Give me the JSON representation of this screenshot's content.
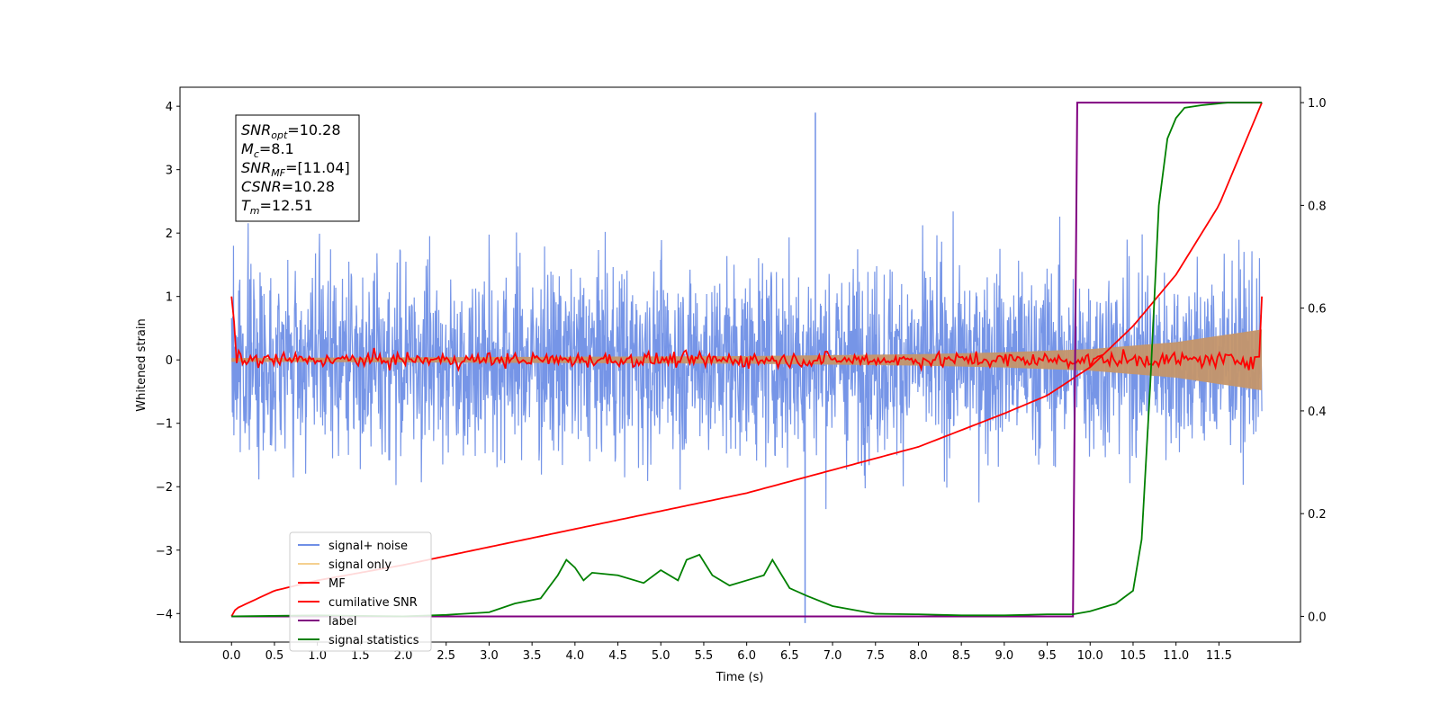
{
  "chart_data": {
    "type": "line",
    "xlabel": "Time (s)",
    "ylabel": "Whitened strain",
    "xlim": [
      -0.6,
      12.45
    ],
    "ylim_left": [
      -4.45,
      4.3
    ],
    "ylim_right": [
      -0.05,
      1.03
    ],
    "x_ticks": [
      "0.0",
      "0.5",
      "1.0",
      "1.5",
      "2.0",
      "2.5",
      "3.0",
      "3.5",
      "4.0",
      "4.5",
      "5.0",
      "5.5",
      "6.0",
      "6.5",
      "7.0",
      "7.5",
      "8.0",
      "8.5",
      "9.0",
      "9.5",
      "10.0",
      "10.5",
      "11.0",
      "11.5"
    ],
    "y_ticks_left": [
      "4",
      "3",
      "2",
      "1",
      "0",
      "−1",
      "−2",
      "−3",
      "−4"
    ],
    "y_ticks_right": [
      "1.0",
      "0.8",
      "0.6",
      "0.4",
      "0.2",
      "0.0"
    ],
    "grid": false,
    "legend_position": "lower-left",
    "info_box": [
      {
        "base": "SNR",
        "sub": "opt",
        "value": "=10.28"
      },
      {
        "base": "M",
        "sub": "c",
        "value": "=8.1"
      },
      {
        "base": "SNR",
        "sub": "MF",
        "value": "=[11.04]"
      },
      {
        "base": "CSNR",
        "sub": "",
        "value": "=10.28"
      },
      {
        "base": "T",
        "sub": "m",
        "value": "=12.51"
      }
    ],
    "series": [
      {
        "name": "signal+ noise",
        "color": "#6f8fe6",
        "axis": "left",
        "style": "noise",
        "x_range": [
          0.0,
          12.0
        ],
        "amplitude_range": [
          -4.15,
          3.9
        ]
      },
      {
        "name": "signal only",
        "color": "#f5c26b",
        "axis": "left",
        "style": "chirp",
        "envelope": {
          "x": [
            0,
            2,
            4,
            6,
            8,
            9,
            10,
            11,
            12
          ],
          "y": [
            0.03,
            0.04,
            0.05,
            0.06,
            0.09,
            0.12,
            0.17,
            0.28,
            0.48
          ]
        }
      },
      {
        "name": "MF",
        "color": "#ff0000",
        "axis": "left",
        "style": "oscillating",
        "edge_values": [
          1.0,
          1.0
        ],
        "band": 0.15
      },
      {
        "name": "cumilative SNR",
        "color": "#ff0000",
        "axis": "right",
        "x": [
          0.0,
          0.05,
          0.5,
          1.0,
          2.0,
          3.0,
          4.0,
          5.0,
          6.0,
          7.0,
          8.0,
          9.0,
          9.5,
          10.0,
          10.5,
          11.0,
          11.5,
          12.0
        ],
        "y": [
          0.0,
          0.015,
          0.05,
          0.07,
          0.1,
          0.135,
          0.17,
          0.205,
          0.24,
          0.285,
          0.33,
          0.395,
          0.43,
          0.485,
          0.565,
          0.665,
          0.8,
          1.0
        ]
      },
      {
        "name": "label",
        "color": "#800080",
        "axis": "right",
        "x": [
          0.0,
          9.8,
          9.85,
          12.0
        ],
        "y": [
          0.0,
          0.0,
          1.0,
          1.0
        ]
      },
      {
        "name": "signal statistics",
        "color": "#008000",
        "axis": "right",
        "x": [
          0.0,
          1.0,
          2.0,
          2.5,
          3.0,
          3.3,
          3.6,
          3.8,
          3.9,
          4.0,
          4.1,
          4.2,
          4.5,
          4.8,
          5.0,
          5.2,
          5.3,
          5.45,
          5.6,
          5.8,
          6.0,
          6.2,
          6.3,
          6.5,
          6.7,
          7.0,
          7.5,
          8.0,
          8.5,
          9.0,
          9.5,
          9.8,
          10.0,
          10.3,
          10.5,
          10.6,
          10.7,
          10.8,
          10.9,
          11.0,
          11.1,
          11.3,
          11.6,
          12.0
        ],
        "y": [
          0.0,
          0.002,
          0.0,
          0.003,
          0.008,
          0.025,
          0.035,
          0.08,
          0.11,
          0.095,
          0.07,
          0.085,
          0.08,
          0.065,
          0.09,
          0.07,
          0.11,
          0.12,
          0.08,
          0.06,
          0.07,
          0.08,
          0.11,
          0.055,
          0.04,
          0.02,
          0.005,
          0.004,
          0.002,
          0.002,
          0.004,
          0.004,
          0.01,
          0.025,
          0.05,
          0.15,
          0.45,
          0.8,
          0.93,
          0.97,
          0.99,
          0.995,
          1.0,
          1.0
        ]
      }
    ]
  }
}
